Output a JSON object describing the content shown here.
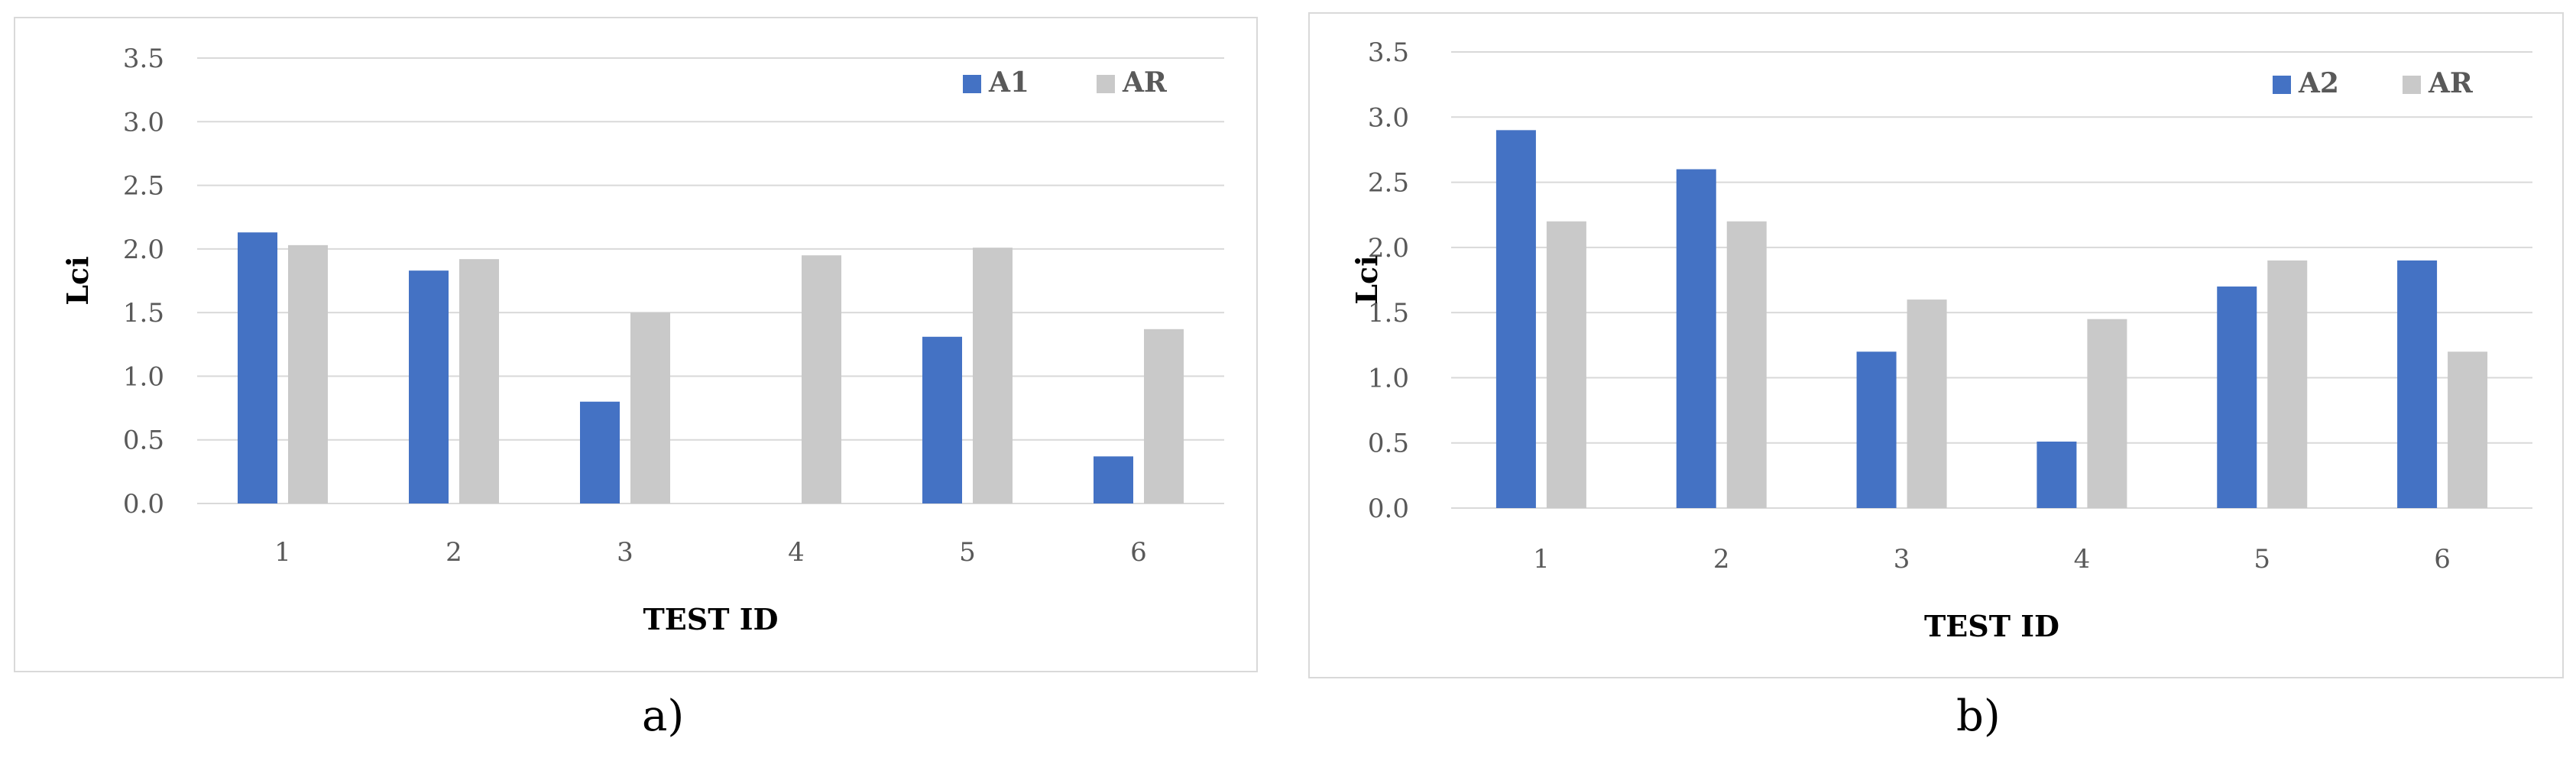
{
  "colors": {
    "primary_series": "#4472c4",
    "reference_series": "#c9c9c9",
    "grid": "#d9d9d9",
    "tick": "#595959"
  },
  "chart_data": [
    {
      "type": "bar",
      "caption": "a)",
      "xlabel": "TEST ID",
      "ylabel": "Lci",
      "ylim": [
        0,
        3.5
      ],
      "yticks": [
        "0.0",
        "0.5",
        "1.0",
        "1.5",
        "2.0",
        "2.5",
        "3.0",
        "3.5"
      ],
      "categories": [
        "1",
        "2",
        "3",
        "4",
        "5",
        "6"
      ],
      "legend_position": "top-right",
      "grid": true,
      "series": [
        {
          "name": "A1",
          "values": [
            2.13,
            1.83,
            0.8,
            0,
            1.31,
            0.37
          ]
        },
        {
          "name": "AR",
          "values": [
            2.03,
            1.92,
            1.5,
            1.95,
            2.01,
            1.37
          ]
        }
      ]
    },
    {
      "type": "bar",
      "caption": "b)",
      "xlabel": "TEST ID",
      "ylabel": "Lci",
      "ylim": [
        0,
        3.5
      ],
      "yticks": [
        "0.0",
        "0.5",
        "1.0",
        "1.5",
        "2.0",
        "2.5",
        "3.0",
        "3.5"
      ],
      "categories": [
        "1",
        "2",
        "3",
        "4",
        "5",
        "6"
      ],
      "legend_position": "top-right",
      "grid": true,
      "series": [
        {
          "name": "A2",
          "values": [
            2.9,
            2.6,
            1.2,
            0.51,
            1.7,
            1.9
          ]
        },
        {
          "name": "AR",
          "values": [
            2.2,
            2.2,
            1.6,
            1.45,
            1.9,
            1.2
          ]
        }
      ]
    }
  ]
}
